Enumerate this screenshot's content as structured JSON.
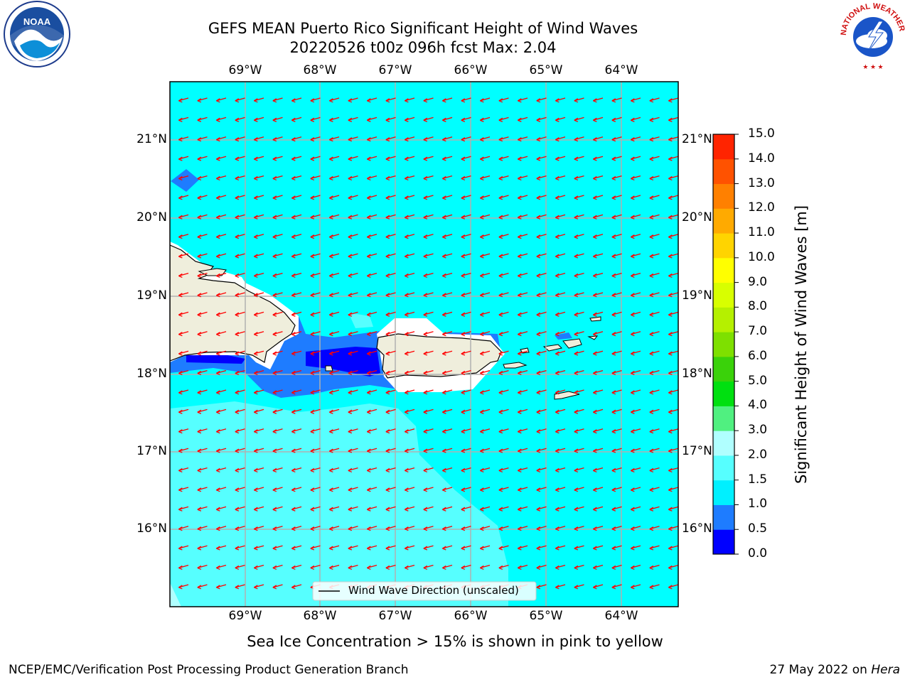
{
  "title_line1": "GEFS MEAN Puerto Rico Significant Height of Wind Waves",
  "title_line2": "20220526 t00z 096h fcst   Max: 2.04",
  "lon_ticks": [
    "69°W",
    "68°W",
    "67°W",
    "66°W",
    "65°W",
    "64°W"
  ],
  "lat_ticks": [
    "21°N",
    "20°N",
    "19°N",
    "18°N",
    "17°N",
    "16°N"
  ],
  "legend_label": "Wind Wave Direction (unscaled)",
  "colorbar": {
    "label": "Significant Height of Wind Waves [m]",
    "ticks": [
      "0.0",
      "0.5",
      "1.0",
      "1.5",
      "2.0",
      "3.0",
      "4.0",
      "5.0",
      "6.0",
      "7.0",
      "8.0",
      "9.0",
      "10.0",
      "11.0",
      "12.0",
      "13.0",
      "14.0",
      "15.0"
    ],
    "colors": [
      "#0000ff",
      "#1e7cff",
      "#00f0ff",
      "#56ffff",
      "#b0ffff",
      "#50f080",
      "#00e010",
      "#3ad20a",
      "#7ee000",
      "#b5f000",
      "#d8ff00",
      "#ffff00",
      "#ffd400",
      "#ffaa00",
      "#ff8000",
      "#ff5200",
      "#ff2400"
    ]
  },
  "sea_ice_note": "Sea Ice Concentration > 15% is shown in pink to yellow",
  "footer_left": "NCEP/EMC/Verification Post Processing Product Generation Branch",
  "footer_date": "27 May 2022 on",
  "footer_machine": "Hera",
  "logo_left_text": "NOAA",
  "logo_right_text": "NATIONAL WEATHER SERVICE",
  "colors": {
    "ocean": "#00ffff",
    "land": "#efeedc",
    "arrow": "#ff0000",
    "grid": "#b0b0b0"
  }
}
